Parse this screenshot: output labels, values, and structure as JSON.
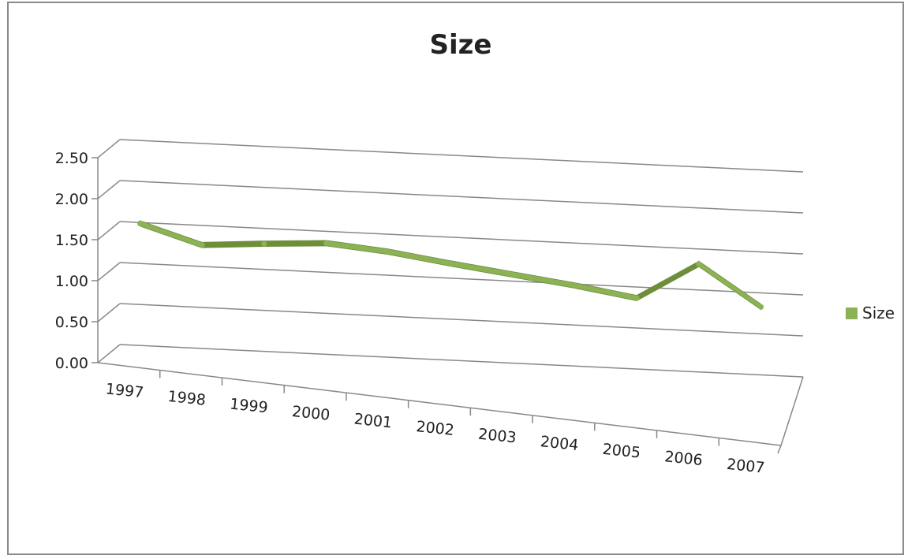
{
  "chart_data": {
    "type": "line",
    "title": "Size",
    "xlabel": "",
    "ylabel": "",
    "categories": [
      "1997",
      "1998",
      "1999",
      "2000",
      "2001",
      "2002",
      "2003",
      "2004",
      "2005",
      "2006",
      "2007"
    ],
    "series": [
      {
        "name": "Size",
        "values": [
          1.62,
          1.42,
          1.5,
          1.57,
          1.53,
          1.45,
          1.38,
          1.31,
          1.22,
          1.7,
          1.24
        ]
      }
    ],
    "y_ticks": [
      "0.00",
      "0.50",
      "1.00",
      "1.50",
      "2.00",
      "2.50"
    ],
    "ylim": [
      0,
      2.5
    ],
    "grid": true,
    "legend": "right",
    "style": "3d-perspective line",
    "colors": {
      "series": "#8DB255",
      "series_dark": "#6E8E3A",
      "grid": "#888888"
    }
  }
}
